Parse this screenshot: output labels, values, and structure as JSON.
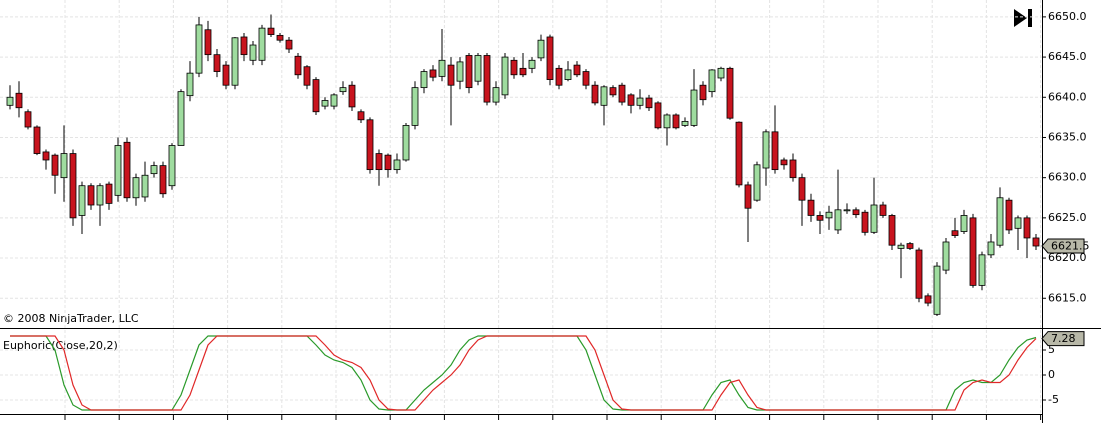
{
  "chart_data": [
    {
      "type": "candlestick",
      "credit": "© 2008 NinjaTrader, LLC",
      "up_color": "#9fdc9f",
      "down_color": "#c8141e",
      "grid": true,
      "ylim": [
        6611.3,
        6652.1
      ],
      "yticks": [
        {
          "value": 6615,
          "label": "6615.0"
        },
        {
          "value": 6620,
          "label": "6620.0"
        },
        {
          "value": 6625,
          "label": "6625.0"
        },
        {
          "value": 6630,
          "label": "6630.0"
        },
        {
          "value": 6635,
          "label": "6635.0"
        },
        {
          "value": 6640,
          "label": "6640.0"
        },
        {
          "value": 6645,
          "label": "6645.0"
        },
        {
          "value": 6650,
          "label": "6650.0"
        }
      ],
      "open": [
        6639,
        6640.5,
        6638.2,
        6636.3,
        6633.2,
        6632.8,
        6630,
        6633,
        6625.3,
        6629,
        6626.6,
        6629.2,
        6627.8,
        6634.4,
        6627.5,
        6627.6,
        6630.5,
        6631.5,
        6629,
        6634,
        6640.2,
        6643,
        6648.4,
        6645.3,
        6644,
        6641.5,
        6647.5,
        6644.6,
        6644.6,
        6648.6,
        6647.7,
        6647.1,
        6645.1,
        6643.8,
        6642.2,
        6638.9,
        6638.9,
        6640.7,
        6641.5,
        6638.2,
        6637.2,
        6633,
        6632.8,
        6631,
        6632.2,
        6636.5,
        6641.2,
        6643.4,
        6642.6,
        6644,
        6642,
        6645.2,
        6642,
        6645.2,
        6639.4,
        6640.3,
        6644.6,
        6643.6,
        6643.6,
        6644.9,
        6647.5,
        6643.6,
        6642.2,
        6644,
        6643.2,
        6641.5,
        6639,
        6641.2,
        6641.5,
        6640.3,
        6639,
        6639.9,
        6639.3,
        6636.2,
        6637.8,
        6636.5,
        6636.5,
        6641.5,
        6640.7,
        6642.4,
        6643.6,
        6636.9,
        6629.1,
        6627.2,
        6631.2,
        6635.7,
        6632.2,
        6632.2,
        6630,
        6627.2,
        6625.3,
        6625,
        6623.5,
        6625.9,
        6626,
        6625.7,
        6623.2,
        6626.6,
        6625.3,
        6621.2,
        6621.8,
        6621,
        6615.3,
        6613,
        6618.5,
        6623.4,
        6623.3,
        6625,
        6616.6,
        6620.4,
        6621.6,
        6627.2,
        6623.7,
        6625,
        6622.5
      ],
      "high": [
        6641.5,
        6642,
        6638.5,
        6636.5,
        6633.5,
        6633,
        6636.5,
        6633.5,
        6629.5,
        6629.3,
        6629.3,
        6629.5,
        6635,
        6635,
        6630.5,
        6632,
        6632,
        6632,
        6634.3,
        6641,
        6644.5,
        6650,
        6649.5,
        6646,
        6644.5,
        6647.5,
        6648,
        6647,
        6649,
        6650.3,
        6648,
        6647.5,
        6645.5,
        6644,
        6642.5,
        6640,
        6640.5,
        6642,
        6642,
        6638.5,
        6637.5,
        6633.5,
        6633,
        6633,
        6636.8,
        6642,
        6643.5,
        6644,
        6648.5,
        6645,
        6645,
        6645.5,
        6645.5,
        6645.5,
        6642,
        6645.5,
        6645,
        6645.5,
        6645,
        6647.8,
        6647.8,
        6644,
        6644.5,
        6644.5,
        6643.5,
        6642,
        6641.5,
        6641.5,
        6641.8,
        6640.5,
        6641,
        6640.3,
        6639.5,
        6638,
        6638,
        6637.5,
        6643.5,
        6642,
        6643.5,
        6643.8,
        6643.8,
        6637,
        6629.5,
        6632,
        6636,
        6639,
        6632.5,
        6633,
        6630.5,
        6628,
        6625.8,
        6626.5,
        6631,
        6626.8,
        6626.3,
        6626,
        6630,
        6627,
        6625.5,
        6621.9,
        6622,
        6621.3,
        6615.6,
        6619.5,
        6622.5,
        6625,
        6626,
        6625.5,
        6620.8,
        6623,
        6628.8,
        6627.5,
        6625.3,
        6625.3,
        6623
      ],
      "low": [
        6638.5,
        6637.5,
        6636,
        6632.8,
        6631,
        6628,
        6627,
        6624,
        6623,
        6626,
        6624,
        6626,
        6627,
        6627,
        6626.5,
        6627,
        6630,
        6627.5,
        6628.5,
        6634,
        6639.5,
        6642.5,
        6644.5,
        6642.5,
        6641,
        6641,
        6644.5,
        6644,
        6644,
        6647.5,
        6646.8,
        6645.5,
        6642.3,
        6641,
        6637.8,
        6638.5,
        6638.5,
        6640.3,
        6638.3,
        6636.8,
        6630.5,
        6629,
        6630,
        6630.5,
        6632,
        6636,
        6640.5,
        6642,
        6642,
        6636.5,
        6641,
        6640.5,
        6641.5,
        6639,
        6639,
        6639.8,
        6642.3,
        6642.5,
        6643,
        6644.5,
        6641.5,
        6641,
        6642,
        6642.5,
        6641,
        6639,
        6636.5,
        6640,
        6639,
        6638,
        6638.5,
        6638.3,
        6636,
        6634,
        6636,
        6636.3,
        6636.3,
        6639,
        6640,
        6642,
        6637.2,
        6628.8,
        6622,
        6627,
        6629,
        6630.5,
        6631,
        6629.5,
        6624,
        6624.5,
        6623,
        6623.5,
        6623,
        6625.5,
        6625,
        6622.8,
        6623,
        6625,
        6621,
        6617.5,
        6621,
        6614.5,
        6614,
        6612.8,
        6618,
        6622.5,
        6623,
        6616.3,
        6616,
        6620,
        6621.3,
        6623,
        6621,
        6620,
        6621
      ],
      "close": [
        6640,
        6638.7,
        6636.3,
        6633,
        6632.2,
        6630.3,
        6633,
        6625,
        6629,
        6626.6,
        6629,
        6626.8,
        6634,
        6627.5,
        6630,
        6630.3,
        6631.5,
        6628,
        6634,
        6640.7,
        6643,
        6649,
        6645.3,
        6643.2,
        6641.5,
        6647.4,
        6645.3,
        6646.5,
        6648.6,
        6647.8,
        6647.1,
        6646,
        6642.8,
        6641.5,
        6638.2,
        6639.6,
        6640.3,
        6641.2,
        6638.8,
        6637.2,
        6631,
        6631,
        6631,
        6632.2,
        6636.5,
        6641.2,
        6643.2,
        6642.5,
        6644.6,
        6641.5,
        6644.4,
        6641.2,
        6645.2,
        6639.4,
        6641.2,
        6645,
        6642.8,
        6642.8,
        6644.6,
        6647.1,
        6642.2,
        6641.5,
        6643.4,
        6642.8,
        6641.5,
        6639.3,
        6641.3,
        6640.3,
        6639.4,
        6639,
        6639.9,
        6638.7,
        6636.2,
        6637.8,
        6636.2,
        6637,
        6640.9,
        6639.7,
        6643.4,
        6643.6,
        6637.4,
        6629.1,
        6626.2,
        6631.6,
        6635.7,
        6631,
        6631.6,
        6630,
        6627.2,
        6625.3,
        6624.7,
        6625.7,
        6626,
        6626,
        6625.4,
        6623.2,
        6626.6,
        6625.3,
        6621.6,
        6621.6,
        6621.2,
        6615,
        6614.4,
        6619,
        6622,
        6622.8,
        6625.3,
        6616.6,
        6620.4,
        6622,
        6627.5,
        6623.5,
        6625,
        6622.5,
        6621.5
      ]
    },
    {
      "type": "line",
      "title": "Euphoric(Close,20,2)",
      "grid": true,
      "ylim": [
        -7.8,
        9
      ],
      "yticks": [
        -5,
        0,
        5
      ],
      "series": [
        {
          "color": "#2a9a2a",
          "values": [
            7.8,
            7.8,
            7.8,
            7.8,
            7.8,
            5,
            -2,
            -6,
            -7,
            -7,
            -7,
            -7,
            -7,
            -7,
            -7,
            -7,
            -7,
            -7,
            -7,
            -4,
            1,
            6,
            7.8,
            7.8,
            7.8,
            7.8,
            7.8,
            7.8,
            7.8,
            7.8,
            7.8,
            7.8,
            7.8,
            7.8,
            6,
            4,
            3,
            2.5,
            1.5,
            -1,
            -5,
            -6.8,
            -7,
            -7,
            -7,
            -5,
            -3,
            -1.5,
            0,
            2,
            5,
            7,
            7.8,
            7.8,
            7.8,
            7.8,
            7.8,
            7.8,
            7.8,
            7.8,
            7.8,
            7.8,
            7.8,
            7.8,
            5,
            0,
            -5,
            -6.8,
            -7,
            -7,
            -7,
            -7,
            -7,
            -7,
            -7,
            -7,
            -7,
            -7,
            -4,
            -1.5,
            -1,
            -4,
            -6.5,
            -7,
            -7,
            -7,
            -7,
            -7,
            -7,
            -7,
            -7,
            -7,
            -7,
            -7,
            -7,
            -7,
            -7,
            -7,
            -7,
            -7,
            -7,
            -7,
            -7,
            -7,
            -7,
            -3,
            -1.5,
            -1,
            -1.5,
            -1.5,
            0,
            3,
            5.5,
            7,
            7.5
          ]
        },
        {
          "color": "#e02828",
          "values": [
            7.8,
            7.8,
            7.8,
            7.8,
            7.8,
            7.8,
            5,
            -2,
            -6,
            -7,
            -7,
            -7,
            -7,
            -7,
            -7,
            -7,
            -7,
            -7,
            -7,
            -7,
            -4,
            1,
            6,
            7.8,
            7.8,
            7.8,
            7.8,
            7.8,
            7.8,
            7.8,
            7.8,
            7.8,
            7.8,
            7.8,
            7.8,
            6,
            4,
            3,
            2.5,
            1.5,
            -1,
            -5,
            -6.8,
            -7,
            -7,
            -7,
            -5,
            -3,
            -1.5,
            0,
            2,
            5,
            7,
            7.8,
            7.8,
            7.8,
            7.8,
            7.8,
            7.8,
            7.8,
            7.8,
            7.8,
            7.8,
            7.8,
            7.8,
            5,
            0,
            -5,
            -6.8,
            -7,
            -7,
            -7,
            -7,
            -7,
            -7,
            -7,
            -7,
            -7,
            -7,
            -4,
            -1.5,
            -1,
            -4,
            -6.5,
            -7,
            -7,
            -7,
            -7,
            -7,
            -7,
            -7,
            -7,
            -7,
            -7,
            -7,
            -7,
            -7,
            -7,
            -7,
            -7,
            -7,
            -7,
            -7,
            -7,
            -7,
            -7,
            -3,
            -1.5,
            -1,
            -1.5,
            -1.5,
            0,
            3,
            5.5,
            7.28
          ]
        }
      ]
    }
  ]
}
